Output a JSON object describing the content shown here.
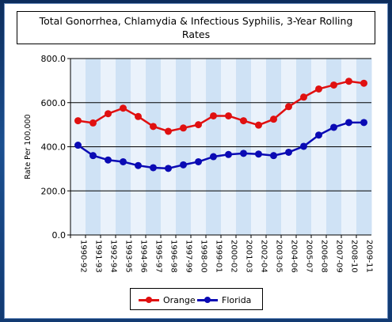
{
  "chart_data": {
    "type": "line",
    "title_lines": [
      "Total Gonorrhea, Chlamydia & Infectious Syphilis, 3-Year Rolling",
      "Rates"
    ],
    "ylabel": "Rate Per 100,000",
    "xlabel": "",
    "ylim": [
      0,
      800
    ],
    "yticks": [
      "0.0",
      "200.0",
      "400.0",
      "600.0",
      "800.0"
    ],
    "ytick_values": [
      0,
      200,
      400,
      600,
      800
    ],
    "grid": true,
    "legend_position": "bottom-center",
    "categories": [
      "1990-92",
      "1991-93",
      "1992-94",
      "1993-95",
      "1994-96",
      "1995-97",
      "1996-98",
      "1997-99",
      "1998-00",
      "1999-01",
      "2000-02",
      "2001-03",
      "2002-04",
      "2003-05",
      "2004-06",
      "2005-07",
      "2006-08",
      "2007-09",
      "2008-10",
      "2009-11"
    ],
    "series": [
      {
        "name": "Orange",
        "color": "#e01010",
        "values": [
          518,
          508,
          550,
          575,
          537,
          492,
          470,
          485,
          500,
          540,
          540,
          518,
          498,
          525,
          582,
          625,
          662,
          680,
          697,
          688
        ]
      },
      {
        "name": "Florida",
        "color": "#0a0ab4",
        "values": [
          407,
          360,
          340,
          332,
          315,
          305,
          302,
          318,
          332,
          355,
          365,
          370,
          367,
          360,
          375,
          402,
          453,
          488,
          510,
          510
        ]
      }
    ]
  },
  "colors": {
    "background": "#102c57",
    "band_light": "#eaf2fb",
    "band_dark": "#cfe2f5",
    "grid": "#000000"
  }
}
